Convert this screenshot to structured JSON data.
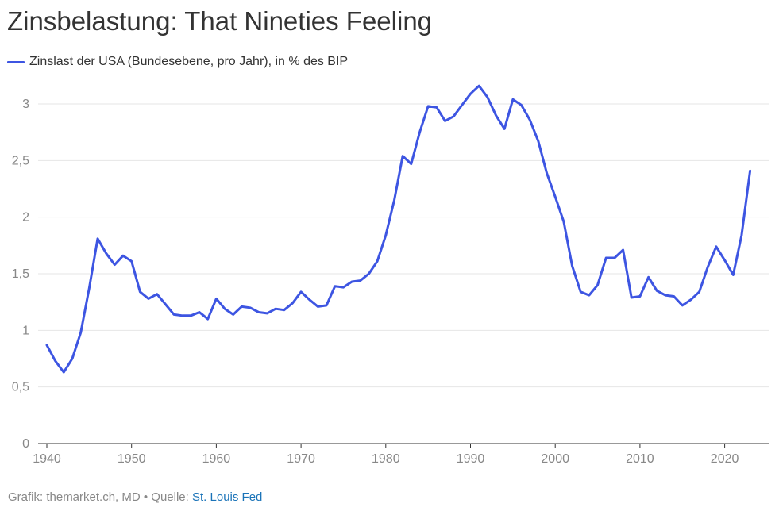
{
  "chart_data": {
    "type": "line",
    "title": "Zinsbelastung: That Nineties Feeling",
    "series": [
      {
        "name": "Zinslast der USA (Bundesebene, pro Jahr), in % des BIP",
        "color": "#3D55E2",
        "x": [
          1940,
          1941,
          1942,
          1943,
          1944,
          1945,
          1946,
          1947,
          1948,
          1949,
          1950,
          1951,
          1952,
          1953,
          1954,
          1955,
          1956,
          1957,
          1958,
          1959,
          1960,
          1961,
          1962,
          1963,
          1964,
          1965,
          1966,
          1967,
          1968,
          1969,
          1970,
          1971,
          1972,
          1973,
          1974,
          1975,
          1976,
          1977,
          1978,
          1979,
          1980,
          1981,
          1982,
          1983,
          1984,
          1985,
          1986,
          1987,
          1988,
          1989,
          1990,
          1991,
          1992,
          1993,
          1994,
          1995,
          1996,
          1997,
          1998,
          1999,
          2000,
          2001,
          2002,
          2003,
          2004,
          2005,
          2006,
          2007,
          2008,
          2009,
          2010,
          2011,
          2012,
          2013,
          2014,
          2015,
          2016,
          2017,
          2018,
          2019,
          2020,
          2021,
          2022,
          2023
        ],
        "values": [
          0.87,
          0.73,
          0.63,
          0.75,
          0.98,
          1.37,
          1.81,
          1.68,
          1.58,
          1.66,
          1.61,
          1.34,
          1.28,
          1.32,
          1.23,
          1.14,
          1.13,
          1.13,
          1.16,
          1.1,
          1.28,
          1.19,
          1.14,
          1.21,
          1.2,
          1.16,
          1.15,
          1.19,
          1.18,
          1.24,
          1.34,
          1.27,
          1.21,
          1.22,
          1.39,
          1.38,
          1.43,
          1.44,
          1.5,
          1.61,
          1.84,
          2.15,
          2.54,
          2.47,
          2.75,
          2.98,
          2.97,
          2.85,
          2.89,
          2.99,
          3.09,
          3.16,
          3.06,
          2.9,
          2.78,
          3.04,
          2.99,
          2.86,
          2.67,
          2.39,
          2.18,
          1.96,
          1.57,
          1.34,
          1.31,
          1.4,
          1.64,
          1.64,
          1.71,
          1.29,
          1.3,
          1.47,
          1.35,
          1.31,
          1.3,
          1.22,
          1.27,
          1.34,
          1.56,
          1.74,
          1.62,
          1.49,
          1.84,
          2.41
        ]
      }
    ],
    "xlim": [
      1939,
      2025
    ],
    "ylim": [
      0,
      3.2
    ],
    "yticks": [
      0,
      0.5,
      1,
      1.5,
      2,
      2.5,
      3
    ],
    "ytick_labels": [
      "0",
      "0,5",
      "1",
      "1,5",
      "2",
      "2,5",
      "3"
    ],
    "xticks": [
      1940,
      1950,
      1960,
      1970,
      1980,
      1990,
      2000,
      2010,
      2020
    ],
    "xtick_labels": [
      "1940",
      "1950",
      "1960",
      "1970",
      "1980",
      "1990",
      "2000",
      "2010",
      "2020"
    ],
    "grid": true,
    "legend_position": "top-left"
  },
  "footer": {
    "credit": "Grafik: themarket.ch, MD • Quelle: ",
    "source_link": "St. Louis Fed"
  }
}
